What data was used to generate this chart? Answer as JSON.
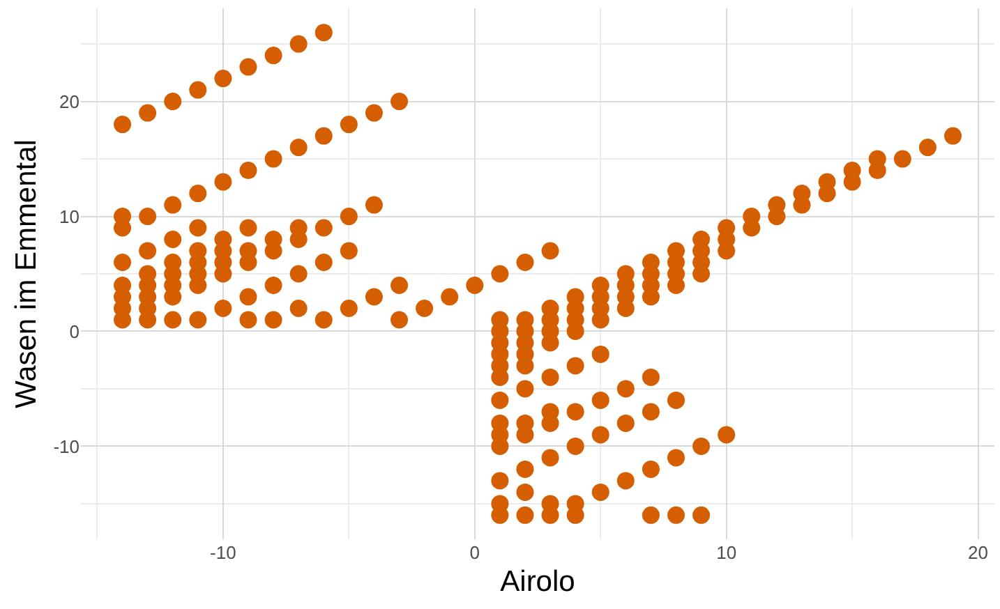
{
  "chart_data": {
    "type": "scatter",
    "xlabel": "Airolo",
    "ylabel": "Wasen im Emmental",
    "marker": "circle",
    "grid": true,
    "xlim": [
      -15.65,
      20.65
    ],
    "ylim": [
      -18.1,
      28.1
    ],
    "xticks": [
      {
        "value": -15,
        "label": null
      },
      -10,
      {
        "value": -5,
        "label": null
      },
      0,
      {
        "value": 5,
        "label": null
      },
      10,
      {
        "value": 15,
        "label": null
      },
      20
    ],
    "yticks": [
      {
        "value": -15,
        "label": null
      },
      -10,
      {
        "value": -5,
        "label": null
      },
      0,
      {
        "value": 5,
        "label": null
      },
      10,
      {
        "value": 15,
        "label": null
      },
      20,
      {
        "value": 25,
        "label": null
      }
    ],
    "series": [
      {
        "color": "#d55e00",
        "x": [
          -14,
          -14,
          -14,
          -14,
          -14,
          -14,
          -14,
          -14,
          -13,
          -13,
          -13,
          -13,
          -13,
          -13,
          -13,
          -13,
          -12,
          -12,
          -12,
          -12,
          -12,
          -12,
          -12,
          -12,
          -11,
          -11,
          -11,
          -11,
          -11,
          -11,
          -11,
          -11,
          -10,
          -10,
          -10,
          -10,
          -10,
          -10,
          -10,
          -9,
          -9,
          -9,
          -9,
          -9,
          -9,
          -9,
          -8,
          -8,
          -8,
          -8,
          -8,
          -8,
          -7,
          -7,
          -7,
          -7,
          -7,
          -7,
          -6,
          -6,
          -6,
          -6,
          -6,
          -5,
          -5,
          -5,
          -5,
          -4,
          -4,
          -4,
          -3,
          -3,
          -3,
          -2,
          -1,
          0,
          1,
          1,
          1,
          1,
          1,
          1,
          1,
          1,
          1,
          1,
          1,
          1,
          1,
          1,
          2,
          2,
          2,
          2,
          2,
          2,
          2,
          2,
          2,
          2,
          2,
          2,
          3,
          3,
          3,
          3,
          3,
          3,
          3,
          3,
          3,
          3,
          3,
          4,
          4,
          4,
          4,
          4,
          4,
          4,
          4,
          4,
          5,
          5,
          5,
          5,
          5,
          5,
          5,
          5,
          6,
          6,
          6,
          6,
          6,
          6,
          6,
          7,
          7,
          7,
          7,
          7,
          7,
          7,
          7,
          8,
          8,
          8,
          8,
          8,
          8,
          8,
          9,
          9,
          9,
          9,
          9,
          9,
          10,
          10,
          10,
          10,
          11,
          11,
          12,
          12,
          13,
          13,
          14,
          14,
          15,
          15,
          16,
          16,
          17,
          18,
          19
        ],
        "values": [
          18,
          10,
          9,
          6,
          4,
          3,
          2,
          1,
          19,
          10,
          7,
          5,
          4,
          3,
          2,
          1,
          20,
          11,
          8,
          6,
          5,
          4,
          3,
          1,
          21,
          12,
          9,
          7,
          6,
          5,
          4,
          1,
          22,
          13,
          8,
          7,
          6,
          5,
          2,
          23,
          14,
          9,
          7,
          6,
          3,
          1,
          24,
          15,
          8,
          7,
          4,
          1,
          25,
          16,
          9,
          8,
          5,
          2,
          26,
          17,
          9,
          6,
          1,
          18,
          10,
          7,
          2,
          19,
          11,
          3,
          20,
          4,
          1,
          2,
          3,
          4,
          5,
          1,
          0,
          -1,
          -2,
          -3,
          -4,
          -6,
          -8,
          -9,
          -10,
          -13,
          -15,
          -16,
          6,
          1,
          0,
          -1,
          -2,
          -3,
          -5,
          -8,
          -9,
          -12,
          -14,
          -16,
          7,
          2,
          1,
          0,
          -1,
          -4,
          -7,
          -8,
          -11,
          -15,
          -16,
          3,
          2,
          1,
          0,
          -3,
          -7,
          -10,
          -15,
          -16,
          4,
          3,
          2,
          1,
          -2,
          -6,
          -9,
          -14,
          5,
          4,
          3,
          2,
          -5,
          -8,
          -13,
          6,
          5,
          4,
          3,
          -4,
          -7,
          -12,
          -16,
          7,
          6,
          5,
          4,
          -6,
          -11,
          -16,
          8,
          7,
          6,
          5,
          -10,
          -16,
          9,
          8,
          7,
          -9,
          10,
          9,
          11,
          10,
          12,
          11,
          13,
          12,
          14,
          13,
          15,
          14,
          15,
          16,
          17
        ]
      }
    ]
  }
}
